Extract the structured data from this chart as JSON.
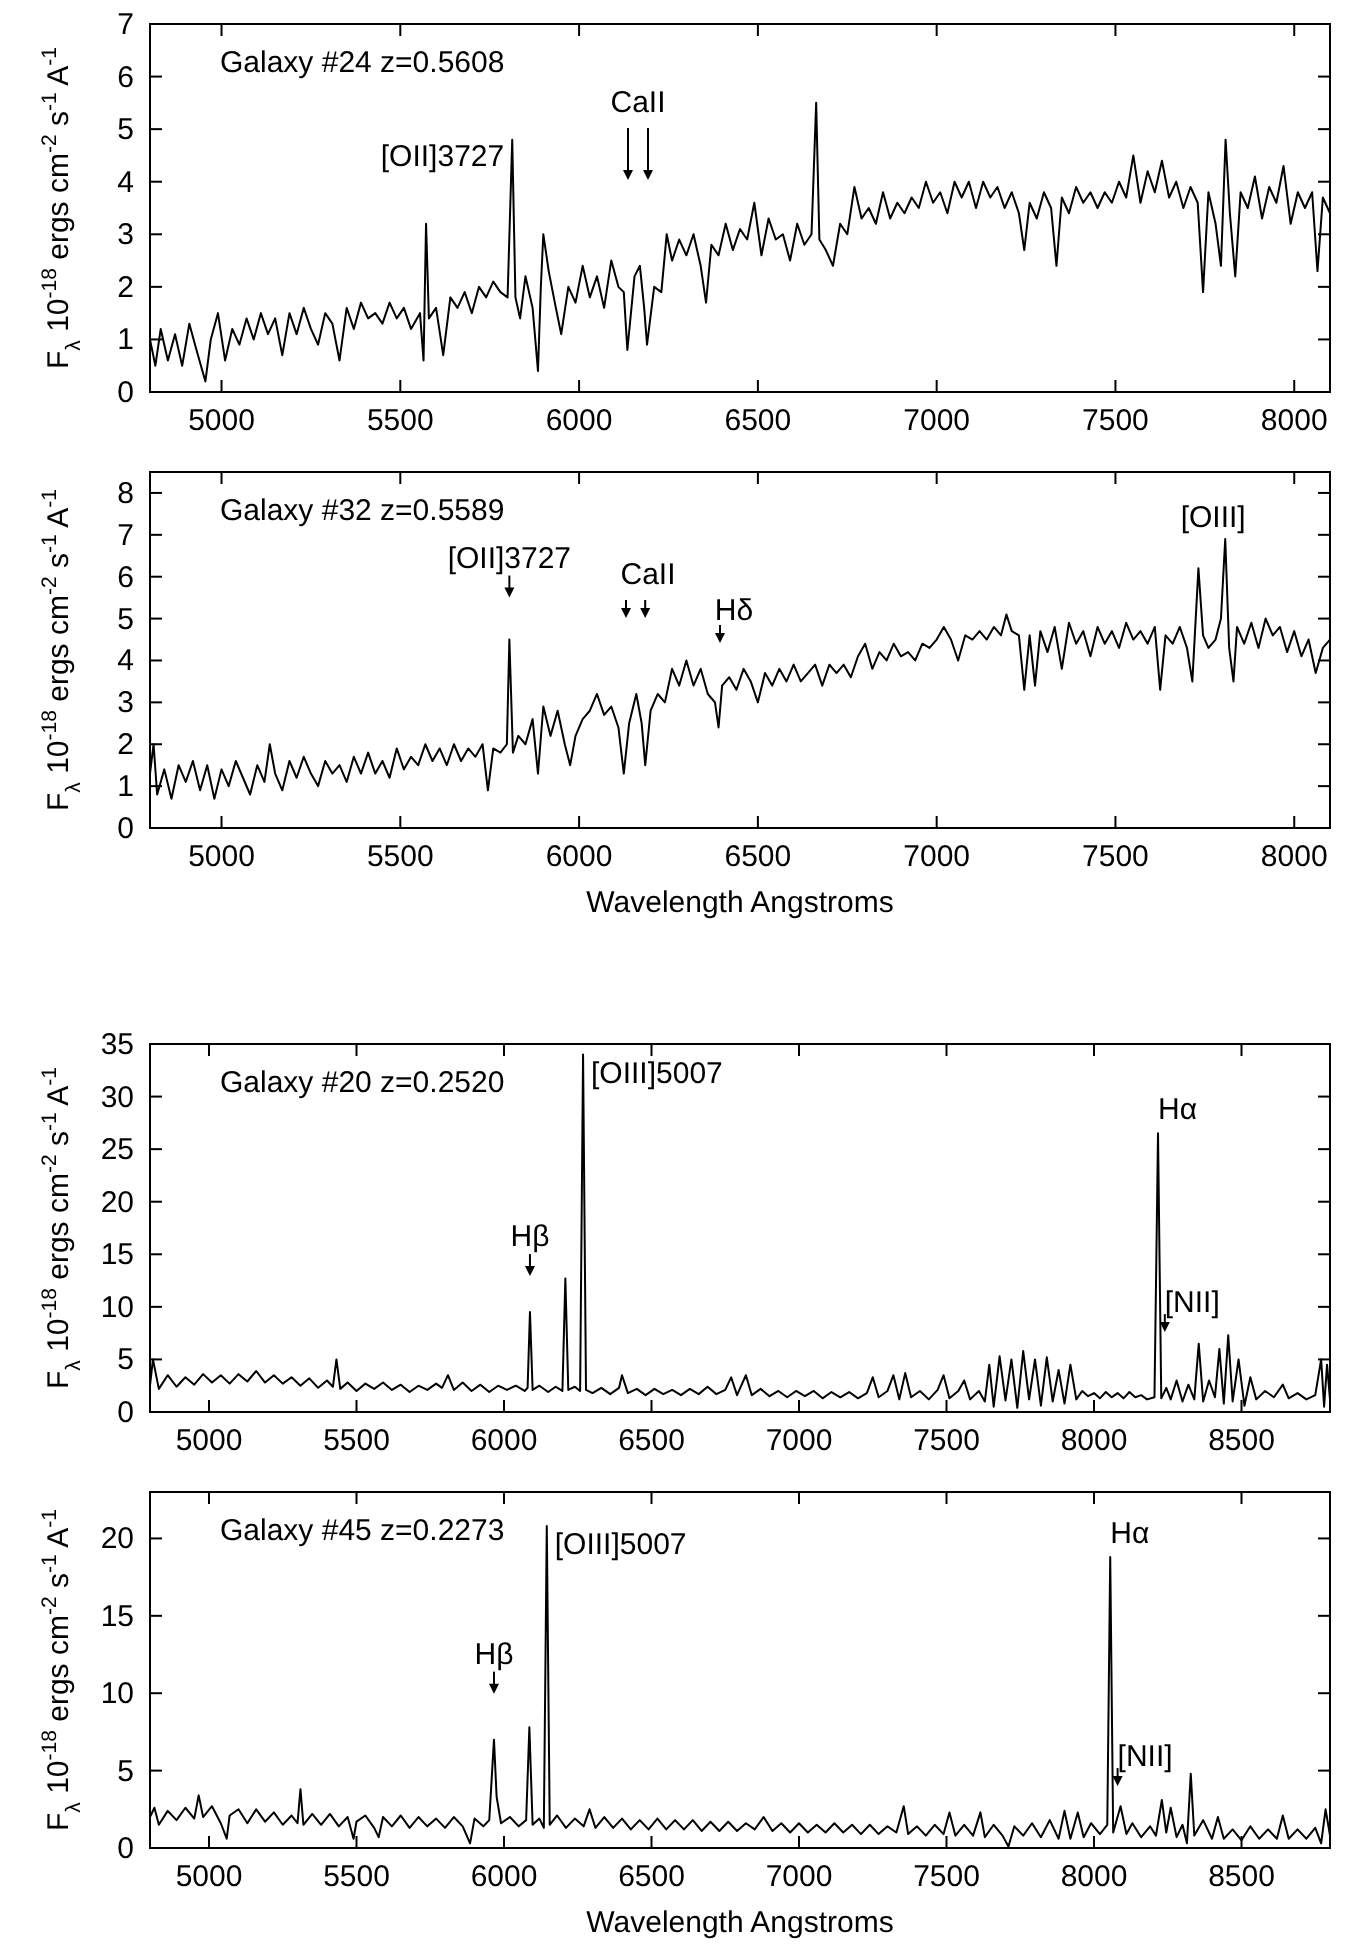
{
  "chart_data": [
    {
      "type": "line",
      "ylabel": "F$_{λ}$ 10$^{-18}$ ergs cm$^{-2}$ s$^{-1}$ A$^{-1}$",
      "xlim": [
        4800,
        8100
      ],
      "ylim": [
        0,
        7
      ],
      "xticks": [
        5000,
        5500,
        6000,
        6500,
        7000,
        7500,
        8000
      ],
      "yticks": [
        0,
        1,
        2,
        3,
        4,
        5,
        6,
        7
      ],
      "annotations": [
        "Galaxy #24 z=0.5608",
        {
          "text": "[OII]3727",
          "x": 5813,
          "y": 4.8
        },
        "CaII"
      ],
      "series": [
        {
          "color": "#000000",
          "x": [
            4800,
            4815,
            4830,
            4850,
            4870,
            4890,
            4910,
            4930,
            4955,
            4970,
            4990,
            5010,
            5030,
            5050,
            5070,
            5090,
            5110,
            5130,
            5150,
            5170,
            5190,
            5210,
            5230,
            5250,
            5270,
            5290,
            5310,
            5330,
            5350,
            5370,
            5390,
            5410,
            5430,
            5450,
            5470,
            5490,
            5510,
            5530,
            5555,
            5565,
            5572,
            5580,
            5600,
            5620,
            5640,
            5660,
            5680,
            5700,
            5720,
            5740,
            5760,
            5780,
            5800,
            5813,
            5822,
            5835,
            5850,
            5870,
            5885,
            5893,
            5900,
            5915,
            5935,
            5950,
            5970,
            5990,
            6010,
            6030,
            6050,
            6070,
            6090,
            6110,
            6125,
            6135,
            6155,
            6170,
            6182,
            6190,
            6210,
            6230,
            6245,
            6260,
            6280,
            6300,
            6320,
            6340,
            6355,
            6370,
            6390,
            6410,
            6430,
            6450,
            6470,
            6490,
            6510,
            6530,
            6550,
            6570,
            6590,
            6610,
            6630,
            6650,
            6663,
            6672,
            6690,
            6710,
            6730,
            6750,
            6770,
            6790,
            6810,
            6830,
            6850,
            6870,
            6890,
            6910,
            6930,
            6950,
            6970,
            6990,
            7010,
            7030,
            7050,
            7070,
            7090,
            7110,
            7130,
            7150,
            7170,
            7190,
            7210,
            7230,
            7245,
            7260,
            7280,
            7300,
            7320,
            7335,
            7350,
            7370,
            7390,
            7410,
            7430,
            7450,
            7470,
            7490,
            7510,
            7530,
            7550,
            7570,
            7590,
            7610,
            7630,
            7650,
            7670,
            7690,
            7710,
            7730,
            7745,
            7760,
            7780,
            7795,
            7808,
            7820,
            7835,
            7850,
            7870,
            7890,
            7910,
            7930,
            7950,
            7970,
            7990,
            8010,
            8030,
            8050,
            8065,
            8080,
            8100
          ],
          "values": [
            1.0,
            0.5,
            1.2,
            0.6,
            1.1,
            0.5,
            1.3,
            0.8,
            0.2,
            1.0,
            1.5,
            0.6,
            1.2,
            0.9,
            1.4,
            1.0,
            1.5,
            1.1,
            1.4,
            0.7,
            1.5,
            1.1,
            1.6,
            1.2,
            0.9,
            1.5,
            1.3,
            0.6,
            1.6,
            1.2,
            1.7,
            1.4,
            1.5,
            1.3,
            1.7,
            1.4,
            1.6,
            1.2,
            1.5,
            0.6,
            3.2,
            1.4,
            1.6,
            0.7,
            1.8,
            1.6,
            1.9,
            1.5,
            2.0,
            1.8,
            2.1,
            1.9,
            1.8,
            4.8,
            1.8,
            1.4,
            2.2,
            1.6,
            0.4,
            2.0,
            3.0,
            2.3,
            1.6,
            1.1,
            2.0,
            1.7,
            2.4,
            1.8,
            2.2,
            1.6,
            2.5,
            2.0,
            1.9,
            0.8,
            2.2,
            2.4,
            1.6,
            0.9,
            2.0,
            1.9,
            3.0,
            2.5,
            2.9,
            2.6,
            3.0,
            2.4,
            1.7,
            2.8,
            2.6,
            3.2,
            2.7,
            3.1,
            2.9,
            3.6,
            2.6,
            3.3,
            2.9,
            3.0,
            2.5,
            3.2,
            2.8,
            3.0,
            5.5,
            2.9,
            2.7,
            2.4,
            3.2,
            3.0,
            3.9,
            3.3,
            3.5,
            3.2,
            3.8,
            3.3,
            3.6,
            3.4,
            3.7,
            3.5,
            4.0,
            3.6,
            3.8,
            3.4,
            4.0,
            3.7,
            4.0,
            3.5,
            4.0,
            3.7,
            3.9,
            3.5,
            3.8,
            3.4,
            2.7,
            3.6,
            3.3,
            3.8,
            3.5,
            2.4,
            3.7,
            3.4,
            3.9,
            3.6,
            3.8,
            3.5,
            3.8,
            3.6,
            4.0,
            3.7,
            4.5,
            3.6,
            4.2,
            3.8,
            4.4,
            3.7,
            4.0,
            3.5,
            3.9,
            3.6,
            1.9,
            3.8,
            3.2,
            2.4,
            4.8,
            3.4,
            2.2,
            3.8,
            3.5,
            4.1,
            3.3,
            3.9,
            3.6,
            4.3,
            3.2,
            3.8,
            3.5,
            3.8,
            2.3,
            3.7,
            3.4
          ]
        }
      ]
    },
    {
      "type": "line",
      "xlabel": "Wavelength Angstroms",
      "ylabel": "F$_{λ}$ 10$^{-18}$ ergs cm$^{-2}$ s$^{-1}$ A$^{-1}$",
      "xlim": [
        4800,
        8100
      ],
      "ylim": [
        0,
        8.5
      ],
      "xticks": [
        5000,
        5500,
        6000,
        6500,
        7000,
        7500,
        8000
      ],
      "yticks": [
        0,
        1,
        2,
        3,
        4,
        5,
        6,
        7,
        8
      ],
      "annotations": [
        "Galaxy #32 z=0.5589",
        {
          "text": "[OII]3727",
          "x": 5805,
          "y": 4.5
        },
        "CaII",
        "Hδ",
        {
          "text": "[OIII]",
          "x": 7807,
          "y": 6.9
        }
      ],
      "series": [
        {
          "color": "#000000",
          "x": [
            4800,
            4810,
            4820,
            4840,
            4860,
            4880,
            4900,
            4920,
            4940,
            4960,
            4980,
            5000,
            5020,
            5040,
            5060,
            5080,
            5100,
            5120,
            5135,
            5150,
            5170,
            5190,
            5210,
            5230,
            5250,
            5270,
            5290,
            5310,
            5330,
            5350,
            5370,
            5390,
            5410,
            5430,
            5450,
            5470,
            5490,
            5510,
            5530,
            5550,
            5570,
            5590,
            5610,
            5630,
            5650,
            5670,
            5690,
            5710,
            5730,
            5745,
            5760,
            5780,
            5798,
            5805,
            5815,
            5830,
            5850,
            5870,
            5885,
            5900,
            5920,
            5940,
            5960,
            5975,
            5990,
            6010,
            6030,
            6050,
            6070,
            6090,
            6110,
            6125,
            6140,
            6160,
            6175,
            6185,
            6200,
            6220,
            6240,
            6260,
            6280,
            6300,
            6320,
            6340,
            6360,
            6380,
            6390,
            6400,
            6420,
            6440,
            6460,
            6480,
            6500,
            6520,
            6540,
            6560,
            6580,
            6600,
            6620,
            6640,
            6660,
            6680,
            6700,
            6720,
            6740,
            6760,
            6780,
            6800,
            6820,
            6840,
            6860,
            6880,
            6900,
            6920,
            6940,
            6960,
            6980,
            7000,
            7020,
            7040,
            7060,
            7080,
            7100,
            7120,
            7140,
            7160,
            7180,
            7195,
            7210,
            7230,
            7245,
            7260,
            7275,
            7290,
            7310,
            7330,
            7350,
            7370,
            7390,
            7410,
            7430,
            7450,
            7470,
            7490,
            7510,
            7530,
            7550,
            7570,
            7590,
            7610,
            7625,
            7640,
            7660,
            7680,
            7700,
            7715,
            7732,
            7745,
            7760,
            7780,
            7795,
            7807,
            7818,
            7830,
            7840,
            7860,
            7880,
            7900,
            7920,
            7940,
            7960,
            7980,
            8000,
            8020,
            8040,
            8060,
            8080,
            8100
          ],
          "values": [
            1.3,
            2.0,
            0.8,
            1.4,
            0.7,
            1.5,
            1.1,
            1.6,
            0.9,
            1.5,
            0.7,
            1.4,
            1.0,
            1.6,
            1.2,
            0.8,
            1.5,
            1.1,
            2.0,
            1.3,
            0.9,
            1.6,
            1.2,
            1.7,
            1.3,
            1.0,
            1.6,
            1.3,
            1.5,
            1.1,
            1.7,
            1.3,
            1.8,
            1.3,
            1.6,
            1.2,
            1.9,
            1.4,
            1.7,
            1.5,
            2.0,
            1.6,
            1.9,
            1.5,
            2.0,
            1.6,
            1.9,
            1.7,
            2.0,
            0.9,
            1.9,
            1.8,
            2.0,
            4.5,
            1.8,
            2.2,
            2.0,
            2.6,
            1.3,
            2.9,
            2.2,
            2.8,
            2.0,
            1.5,
            2.2,
            2.6,
            2.8,
            3.2,
            2.7,
            2.9,
            2.4,
            1.3,
            2.5,
            3.2,
            2.5,
            1.5,
            2.8,
            3.2,
            3.0,
            3.8,
            3.4,
            4.0,
            3.4,
            3.8,
            3.2,
            3.0,
            2.4,
            3.4,
            3.6,
            3.3,
            3.8,
            3.5,
            3.0,
            3.7,
            3.4,
            3.8,
            3.5,
            3.9,
            3.5,
            3.7,
            3.9,
            3.4,
            3.9,
            3.7,
            3.9,
            3.6,
            4.1,
            4.4,
            3.8,
            4.2,
            4.0,
            4.4,
            4.1,
            4.2,
            4.0,
            4.4,
            4.3,
            4.5,
            4.8,
            4.5,
            4.0,
            4.6,
            4.5,
            4.7,
            4.5,
            4.8,
            4.6,
            5.1,
            4.7,
            4.6,
            3.3,
            4.6,
            3.4,
            4.7,
            4.2,
            4.8,
            3.8,
            4.9,
            4.4,
            4.7,
            4.1,
            4.8,
            4.4,
            4.7,
            4.3,
            4.9,
            4.5,
            4.7,
            4.4,
            4.8,
            3.3,
            4.6,
            4.4,
            4.8,
            4.3,
            3.5,
            6.2,
            4.6,
            4.3,
            4.5,
            5.0,
            6.9,
            4.3,
            3.5,
            4.8,
            4.4,
            4.9,
            4.3,
            5.0,
            4.6,
            4.8,
            4.2,
            4.7,
            4.1,
            4.5,
            3.7,
            4.3,
            4.5
          ]
        }
      ]
    },
    {
      "type": "line",
      "ylabel": "F$_{λ}$ 10$^{-18}$ ergs cm$^{-2}$ s$^{-1}$ A$^{-1}$",
      "xlim": [
        4800,
        8800
      ],
      "ylim": [
        0,
        35
      ],
      "xticks": [
        5000,
        5500,
        6000,
        6500,
        7000,
        7500,
        8000,
        8500
      ],
      "yticks": [
        0,
        5,
        10,
        15,
        20,
        25,
        30,
        35
      ],
      "annotations": [
        "Galaxy #20 z=0.2520",
        {
          "text": "Hβ",
          "x": 6088,
          "y": 9.5
        },
        {
          "text": "[OIII]5007",
          "x": 6268,
          "y": 34
        },
        {
          "text": "Hα",
          "x": 8217,
          "y": 26.5
        },
        {
          "text": "[NII]",
          "x": 8240,
          "y": 7.6
        }
      ],
      "series": [
        {
          "color": "#000000",
          "x": [
            4800,
            4810,
            4830,
            4860,
            4890,
            4920,
            4950,
            4980,
            5010,
            5040,
            5070,
            5100,
            5130,
            5160,
            5190,
            5220,
            5250,
            5280,
            5310,
            5340,
            5370,
            5400,
            5420,
            5432,
            5445,
            5470,
            5500,
            5530,
            5560,
            5590,
            5620,
            5650,
            5680,
            5710,
            5740,
            5770,
            5790,
            5810,
            5830,
            5860,
            5890,
            5920,
            5950,
            5980,
            6010,
            6040,
            6070,
            6080,
            6088,
            6097,
            6120,
            6150,
            6175,
            6198,
            6208,
            6218,
            6240,
            6258,
            6268,
            6278,
            6300,
            6330,
            6360,
            6390,
            6400,
            6420,
            6450,
            6480,
            6510,
            6540,
            6570,
            6600,
            6630,
            6660,
            6690,
            6720,
            6750,
            6770,
            6790,
            6820,
            6840,
            6870,
            6900,
            6930,
            6960,
            6990,
            7020,
            7050,
            7080,
            7110,
            7140,
            7170,
            7200,
            7230,
            7250,
            7270,
            7300,
            7320,
            7340,
            7360,
            7380,
            7410,
            7440,
            7470,
            7490,
            7510,
            7540,
            7560,
            7580,
            7610,
            7630,
            7645,
            7660,
            7680,
            7700,
            7720,
            7740,
            7760,
            7780,
            7800,
            7820,
            7840,
            7860,
            7880,
            7900,
            7920,
            7940,
            7960,
            7980,
            8000,
            8020,
            8040,
            8060,
            8080,
            8100,
            8120,
            8140,
            8160,
            8180,
            8205,
            8217,
            8228,
            8245,
            8260,
            8280,
            8300,
            8320,
            8340,
            8355,
            8370,
            8390,
            8410,
            8425,
            8440,
            8455,
            8470,
            8490,
            8510,
            8530,
            8550,
            8580,
            8610,
            8640,
            8660,
            8690,
            8720,
            8750,
            8770,
            8780,
            8790,
            8800
          ],
          "values": [
            2.5,
            5.0,
            2.2,
            3.5,
            2.4,
            3.3,
            2.6,
            3.6,
            2.8,
            3.5,
            2.7,
            3.6,
            2.9,
            3.9,
            2.8,
            3.5,
            2.7,
            3.3,
            2.5,
            3.2,
            2.3,
            3.0,
            2.4,
            5.0,
            2.2,
            2.8,
            2.0,
            2.7,
            2.2,
            2.8,
            2.1,
            2.6,
            1.9,
            2.5,
            2.1,
            2.7,
            2.3,
            3.5,
            2.1,
            2.8,
            2.0,
            2.6,
            1.9,
            2.5,
            2.1,
            2.5,
            2.0,
            2.3,
            9.5,
            2.1,
            2.5,
            1.9,
            2.4,
            2.0,
            12.7,
            2.1,
            2.4,
            2.0,
            34,
            2.1,
            1.8,
            2.3,
            1.7,
            2.3,
            3.5,
            1.8,
            2.2,
            1.6,
            2.2,
            1.7,
            2.1,
            1.6,
            2.2,
            1.7,
            2.4,
            1.7,
            2.1,
            3.3,
            1.6,
            3.5,
            1.6,
            2.2,
            1.5,
            2.0,
            1.4,
            2.0,
            1.5,
            2.0,
            1.3,
            1.9,
            1.4,
            1.9,
            1.3,
            1.8,
            3.3,
            1.4,
            2.0,
            3.5,
            1.2,
            3.7,
            1.4,
            2.0,
            1.2,
            2.1,
            3.5,
            1.3,
            2.0,
            3.0,
            1.2,
            2.0,
            1.0,
            4.5,
            0.5,
            5.3,
            1.1,
            5.0,
            0.4,
            5.8,
            1.2,
            5.0,
            0.6,
            5.2,
            1.0,
            4.0,
            0.8,
            4.5,
            1.2,
            2.0,
            1.5,
            1.8,
            1.3,
            1.9,
            1.4,
            1.8,
            1.3,
            1.9,
            1.4,
            1.6,
            1.2,
            1.4,
            26.5,
            1.3,
            2.3,
            1.2,
            3.0,
            1.0,
            2.6,
            1.2,
            6.5,
            1.0,
            3.0,
            1.4,
            6.0,
            0.8,
            7.3,
            1.0,
            5.0,
            0.6,
            3.3,
            1.2,
            2.0,
            1.4,
            2.6,
            1.3,
            1.8,
            1.2,
            1.6,
            5.0,
            0.5,
            4.5,
            1.2
          ]
        }
      ]
    },
    {
      "type": "line",
      "xlabel": "Wavelength Angstroms",
      "ylabel": "F$_{λ}$ 10$^{-18}$ ergs cm$^{-2}$ s$^{-1}$ A$^{-1}$",
      "xlim": [
        4800,
        8800
      ],
      "ylim": [
        0,
        23
      ],
      "xticks": [
        5000,
        5500,
        6000,
        6500,
        7000,
        7500,
        8000,
        8500
      ],
      "yticks": [
        0,
        5,
        10,
        15,
        20
      ],
      "annotations": [
        "Galaxy #45 z=0.2273",
        {
          "text": "Hβ",
          "x": 5966,
          "y": 7.0
        },
        {
          "text": "[OIII]5007",
          "x": 6145,
          "y": 20.8
        },
        {
          "text": "Hα",
          "x": 8055,
          "y": 18.8
        },
        {
          "text": "[NII]",
          "x": 8080,
          "y": 4.0
        }
      ],
      "series": [
        {
          "color": "#000000",
          "x": [
            4800,
            4815,
            4830,
            4860,
            4890,
            4920,
            4950,
            4965,
            4980,
            5010,
            5040,
            5060,
            5070,
            5100,
            5130,
            5160,
            5190,
            5220,
            5250,
            5280,
            5300,
            5310,
            5320,
            5350,
            5380,
            5410,
            5440,
            5470,
            5490,
            5500,
            5530,
            5560,
            5575,
            5590,
            5620,
            5650,
            5680,
            5710,
            5740,
            5770,
            5800,
            5830,
            5860,
            5885,
            5900,
            5930,
            5950,
            5966,
            5975,
            5990,
            6020,
            6050,
            6075,
            6086,
            6097,
            6120,
            6135,
            6145,
            6155,
            6180,
            6210,
            6240,
            6270,
            6290,
            6310,
            6340,
            6370,
            6400,
            6430,
            6460,
            6490,
            6520,
            6550,
            6580,
            6610,
            6640,
            6670,
            6700,
            6730,
            6760,
            6790,
            6820,
            6850,
            6880,
            6910,
            6940,
            6970,
            7000,
            7030,
            7060,
            7090,
            7120,
            7150,
            7180,
            7210,
            7240,
            7270,
            7300,
            7330,
            7355,
            7370,
            7400,
            7430,
            7460,
            7490,
            7510,
            7530,
            7560,
            7590,
            7615,
            7630,
            7660,
            7690,
            7710,
            7730,
            7760,
            7790,
            7820,
            7850,
            7880,
            7900,
            7920,
            7945,
            7965,
            7990,
            8020,
            8045,
            8055,
            8065,
            8090,
            8110,
            8130,
            8160,
            8190,
            8210,
            8230,
            8245,
            8260,
            8280,
            8300,
            8315,
            8328,
            8340,
            8370,
            8400,
            8420,
            8440,
            8470,
            8500,
            8530,
            8560,
            8590,
            8620,
            8640,
            8660,
            8690,
            8720,
            8750,
            8770,
            8785,
            8800
          ],
          "values": [
            2.0,
            2.6,
            1.5,
            2.4,
            1.8,
            2.6,
            1.9,
            3.4,
            2.0,
            2.7,
            1.6,
            0.6,
            2.1,
            2.5,
            1.6,
            2.5,
            1.7,
            2.3,
            1.5,
            2.1,
            1.6,
            3.8,
            1.5,
            2.2,
            1.5,
            2.2,
            1.4,
            2.0,
            0.6,
            1.7,
            2.1,
            1.3,
            0.7,
            2.0,
            1.4,
            2.1,
            1.3,
            2.0,
            1.4,
            1.9,
            1.3,
            2.0,
            1.4,
            0.3,
            1.9,
            1.4,
            1.8,
            7.0,
            3.3,
            1.6,
            2.0,
            1.4,
            1.8,
            7.8,
            1.5,
            1.9,
            1.3,
            20.8,
            1.5,
            2.1,
            1.3,
            1.9,
            1.4,
            2.5,
            1.3,
            2.0,
            1.3,
            1.9,
            1.2,
            1.8,
            1.2,
            1.9,
            1.2,
            1.8,
            1.2,
            1.8,
            1.1,
            1.7,
            1.1,
            1.7,
            1.1,
            1.6,
            1.2,
            2.0,
            1.1,
            1.6,
            1.0,
            1.6,
            1.0,
            1.5,
            1.0,
            1.6,
            1.0,
            1.5,
            0.9,
            1.5,
            0.9,
            1.4,
            1.0,
            2.7,
            0.9,
            1.4,
            0.8,
            1.5,
            0.9,
            2.3,
            0.8,
            1.5,
            0.8,
            2.3,
            0.7,
            1.5,
            0.8,
            0.1,
            1.4,
            0.8,
            1.6,
            0.7,
            1.8,
            0.6,
            2.4,
            0.6,
            2.3,
            0.7,
            1.6,
            0.9,
            1.5,
            18.8,
            1.0,
            2.7,
            0.9,
            1.6,
            0.7,
            1.4,
            0.8,
            3.1,
            1.0,
            2.6,
            0.7,
            1.5,
            0.3,
            4.8,
            0.8,
            1.8,
            0.6,
            2.0,
            0.6,
            1.2,
            0.5,
            1.4,
            0.6,
            1.2,
            0.6,
            2.1,
            0.6,
            1.2,
            0.6,
            1.3,
            0.3,
            2.5,
            0.8
          ]
        }
      ]
    }
  ]
}
